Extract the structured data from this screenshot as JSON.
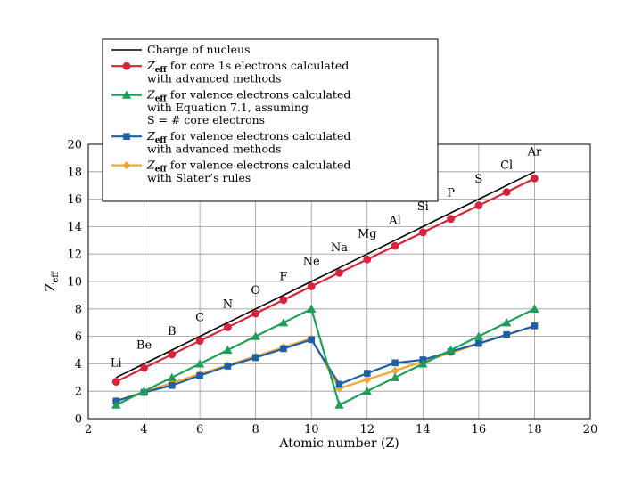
{
  "chart_data": {
    "type": "line",
    "xlabel": "Atomic number (Z)",
    "ylabel": "Zeff",
    "ylabel_main": "Z",
    "ylabel_sub": "eff",
    "xlim": [
      2,
      20
    ],
    "ylim": [
      0,
      20
    ],
    "x_ticks": [
      2,
      4,
      6,
      8,
      10,
      12,
      14,
      16,
      18,
      20
    ],
    "y_ticks": [
      0,
      2,
      4,
      6,
      8,
      10,
      12,
      14,
      16,
      18,
      20
    ],
    "grid": true,
    "legend_position": "top-left",
    "x": [
      3,
      4,
      5,
      6,
      7,
      8,
      9,
      10,
      11,
      12,
      13,
      14,
      15,
      16,
      17,
      18
    ],
    "series": [
      {
        "name": "Charge of nucleus",
        "legend_lines": [
          "Charge of nucleus"
        ],
        "color": "#000000",
        "marker": "none",
        "values": [
          3,
          4,
          5,
          6,
          7,
          8,
          9,
          10,
          11,
          12,
          13,
          14,
          15,
          16,
          17,
          18
        ]
      },
      {
        "name": "Zeff for core 1s electrons calculated with advanced methods",
        "legend_lines": [
          "for core 1s electrons calculated",
          "with advanced methods"
        ],
        "color": "#d6243a",
        "marker": "circle",
        "values": [
          2.69,
          3.69,
          4.68,
          5.67,
          6.66,
          7.66,
          8.65,
          9.64,
          10.63,
          11.61,
          12.59,
          13.58,
          14.56,
          15.54,
          16.52,
          17.51
        ]
      },
      {
        "name": "Zeff for valence electrons calculated with Equation 7.1, assuming S = # core electrons",
        "legend_lines": [
          "for valence electrons calculated",
          "with Equation 7.1, assuming",
          "S = # core electrons"
        ],
        "color": "#1f9e5a",
        "marker": "triangle",
        "values": [
          1,
          2,
          3,
          4,
          5,
          6,
          7,
          8,
          1,
          2,
          3,
          4,
          5,
          6,
          7,
          8
        ]
      },
      {
        "name": "Zeff for valence electrons calculated with advanced methods",
        "legend_lines": [
          "for valence electrons calculated",
          "with advanced methods"
        ],
        "color": "#1f5fa8",
        "marker": "square",
        "values": [
          1.28,
          1.91,
          2.42,
          3.14,
          3.83,
          4.45,
          5.1,
          5.76,
          2.51,
          3.31,
          4.07,
          4.29,
          4.89,
          5.48,
          6.12,
          6.76
        ]
      },
      {
        "name": "Zeff for valence electrons calculated with Slater's rules",
        "legend_lines": [
          "for valence electrons calculated",
          "with Slater’s rules"
        ],
        "color": "#f0a830",
        "marker": "diamond",
        "values": [
          1.3,
          1.95,
          2.6,
          3.25,
          3.9,
          4.55,
          5.2,
          5.85,
          2.2,
          2.85,
          3.5,
          4.15,
          4.8,
          5.45,
          6.1,
          6.75
        ]
      }
    ],
    "legend_prefix_main": "Z",
    "legend_prefix_sub": "eff",
    "element_labels": [
      {
        "label": "Li",
        "x": 3,
        "y": 3.8
      },
      {
        "label": "Be",
        "x": 4,
        "y": 5.1
      },
      {
        "label": "B",
        "x": 5,
        "y": 6.1
      },
      {
        "label": "C",
        "x": 6,
        "y": 7.1
      },
      {
        "label": "N",
        "x": 7,
        "y": 8.1
      },
      {
        "label": "O",
        "x": 8,
        "y": 9.1
      },
      {
        "label": "F",
        "x": 9,
        "y": 10.1
      },
      {
        "label": "Ne",
        "x": 10,
        "y": 11.2
      },
      {
        "label": "Na",
        "x": 11,
        "y": 12.2
      },
      {
        "label": "Mg",
        "x": 12,
        "y": 13.2
      },
      {
        "label": "Al",
        "x": 13,
        "y": 14.2
      },
      {
        "label": "Si",
        "x": 14,
        "y": 15.2
      },
      {
        "label": "P",
        "x": 15,
        "y": 16.2
      },
      {
        "label": "S",
        "x": 16,
        "y": 17.2
      },
      {
        "label": "Cl",
        "x": 17,
        "y": 18.2
      },
      {
        "label": "Ar",
        "x": 18,
        "y": 19.2
      }
    ]
  }
}
